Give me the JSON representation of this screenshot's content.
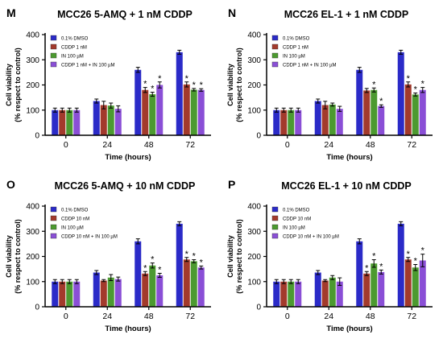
{
  "chart_data": [
    {
      "letter": "M",
      "type": "bar",
      "title": "MCC26 5-AMQ + 1 nM CDDP",
      "xlabel": "Time (hours)",
      "ylabel_line1": "Cell viability",
      "ylabel_line2": "(% respect to control)",
      "ylim": [
        0,
        400
      ],
      "yticks": [
        "0",
        "100",
        "200",
        "300",
        "400"
      ],
      "categories": [
        "0",
        "24",
        "48",
        "72"
      ],
      "legend_placement": "top-left",
      "grid": false,
      "series": [
        {
          "name": "0.1% DMSO",
          "color": "#2b2bc8",
          "values": [
            100,
            136,
            260,
            330
          ],
          "errors": [
            8,
            8,
            10,
            8
          ],
          "sig": [
            false,
            false,
            false,
            false
          ]
        },
        {
          "name": "CDDP 1 nM",
          "color": "#a33a2c",
          "values": [
            100,
            120,
            180,
            202
          ],
          "errors": [
            8,
            15,
            10,
            10
          ],
          "sig": [
            false,
            false,
            true,
            true
          ]
        },
        {
          "name": "IN 100 µM",
          "color": "#4c9a30",
          "values": [
            100,
            118,
            163,
            181
          ],
          "errors": [
            8,
            10,
            8,
            5
          ],
          "sig": [
            false,
            false,
            true,
            true
          ]
        },
        {
          "name": "CDDP 1 nM + IN 100 µM",
          "color": "#8a4fd6",
          "values": [
            100,
            105,
            200,
            180
          ],
          "errors": [
            8,
            12,
            12,
            5
          ],
          "sig": [
            false,
            false,
            true,
            true
          ]
        }
      ],
      "sig_symbol": "*"
    },
    {
      "letter": "N",
      "type": "bar",
      "title": "MCC26 EL-1 + 1 nM CDDP",
      "xlabel": "Time (hours)",
      "ylabel_line1": "Cell viability",
      "ylabel_line2": "(% respect to control)",
      "ylim": [
        0,
        400
      ],
      "yticks": [
        "0",
        "100",
        "200",
        "300",
        "400"
      ],
      "categories": [
        "0",
        "24",
        "48",
        "72"
      ],
      "legend_placement": "top-left",
      "grid": false,
      "series": [
        {
          "name": "0.1%  DMSO",
          "color": "#2b2bc8",
          "values": [
            100,
            136,
            260,
            330
          ],
          "errors": [
            8,
            8,
            10,
            8
          ],
          "sig": [
            false,
            false,
            false,
            false
          ]
        },
        {
          "name": "CDDP 1 nM",
          "color": "#a33a2c",
          "values": [
            100,
            120,
            178,
            202
          ],
          "errors": [
            8,
            15,
            8,
            10
          ],
          "sig": [
            false,
            false,
            false,
            true
          ]
        },
        {
          "name": "IN 100 µM",
          "color": "#4c9a30",
          "values": [
            100,
            122,
            180,
            162
          ],
          "errors": [
            8,
            6,
            8,
            6
          ],
          "sig": [
            false,
            false,
            true,
            true
          ]
        },
        {
          "name": "CDDP 1 nM + IN 100 µM",
          "color": "#8a4fd6",
          "values": [
            100,
            105,
            116,
            180
          ],
          "errors": [
            8,
            10,
            5,
            10
          ],
          "sig": [
            false,
            false,
            true,
            true
          ]
        }
      ],
      "sig_symbol": "*"
    },
    {
      "letter": "O",
      "type": "bar",
      "title": "MCC26 5-AMQ + 10 nM CDDP",
      "xlabel": "Time (hours)",
      "ylabel_line1": "Cell viability",
      "ylabel_line2": "(% respect to control)",
      "ylim": [
        0,
        400
      ],
      "yticks": [
        "0",
        "100",
        "200",
        "300",
        "400"
      ],
      "categories": [
        "0",
        "24",
        "48",
        "72"
      ],
      "legend_placement": "top-left",
      "grid": false,
      "series": [
        {
          "name": "0.1% DMSO",
          "color": "#2b2bc8",
          "values": [
            100,
            136,
            260,
            330
          ],
          "errors": [
            8,
            8,
            10,
            8
          ],
          "sig": [
            false,
            false,
            false,
            false
          ]
        },
        {
          "name": "CDDP 10 nM",
          "color": "#a33a2c",
          "values": [
            100,
            104,
            132,
            188
          ],
          "errors": [
            8,
            4,
            8,
            8
          ],
          "sig": [
            false,
            false,
            true,
            true
          ]
        },
        {
          "name": "IN 100 µM",
          "color": "#4c9a30",
          "values": [
            100,
            116,
            164,
            181
          ],
          "errors": [
            8,
            12,
            10,
            6
          ],
          "sig": [
            false,
            false,
            true,
            true
          ]
        },
        {
          "name": "CDDP 10 nM + IN 100 µM",
          "color": "#8a4fd6",
          "values": [
            100,
            110,
            125,
            156
          ],
          "errors": [
            8,
            8,
            8,
            6
          ],
          "sig": [
            false,
            false,
            true,
            true
          ]
        }
      ],
      "sig_symbol": "*"
    },
    {
      "letter": "P",
      "type": "bar",
      "title": "MCC26 EL-1 + 10 nM CDDP",
      "xlabel": "Time (hours)",
      "ylabel_line1": "Cell viability",
      "ylabel_line2": "(% respect to control)",
      "ylim": [
        0,
        400
      ],
      "yticks": [
        "0",
        "100",
        "200",
        "300",
        "400"
      ],
      "categories": [
        "0",
        "24",
        "48",
        "72"
      ],
      "legend_placement": "top-left",
      "grid": false,
      "series": [
        {
          "name": "0.1% DMSO",
          "color": "#2b2bc8",
          "values": [
            100,
            136,
            260,
            330
          ],
          "errors": [
            8,
            8,
            10,
            8
          ],
          "sig": [
            false,
            false,
            false,
            false
          ]
        },
        {
          "name": "CDDP 10 nM",
          "color": "#a33a2c",
          "values": [
            100,
            104,
            132,
            188
          ],
          "errors": [
            8,
            4,
            8,
            8
          ],
          "sig": [
            false,
            false,
            true,
            true
          ]
        },
        {
          "name": "IN 100 µM",
          "color": "#4c9a30",
          "values": [
            100,
            116,
            172,
            156
          ],
          "errors": [
            8,
            8,
            15,
            12
          ],
          "sig": [
            false,
            false,
            true,
            true
          ]
        },
        {
          "name": "CDDP 10 nM + IN 100 µM",
          "color": "#8a4fd6",
          "values": [
            100,
            100,
            138,
            184
          ],
          "errors": [
            8,
            15,
            8,
            25
          ],
          "sig": [
            false,
            false,
            true,
            true
          ]
        }
      ],
      "sig_symbol": "*"
    }
  ]
}
